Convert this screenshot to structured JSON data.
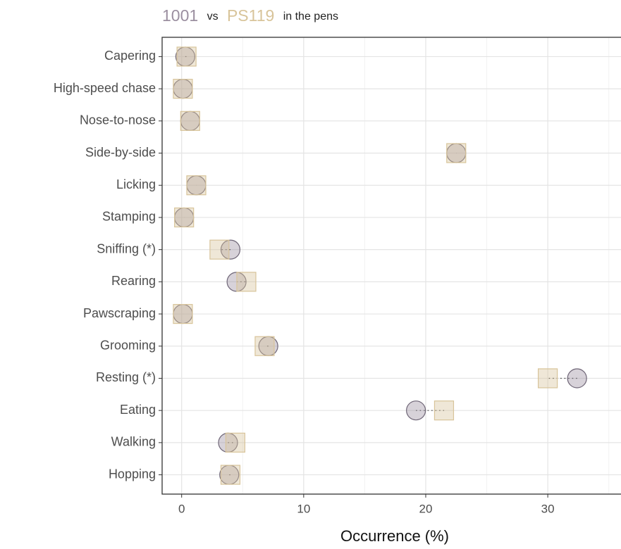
{
  "chart_data": {
    "type": "dumbbell",
    "title_vs": "vs",
    "title_tail": "in the pens",
    "xlabel": "Occurrence (%)",
    "categories": [
      "Capering",
      "High-speed chase",
      "Nose-to-nose",
      "Side-by-side",
      "Licking",
      "Stamping",
      "Sniffing (*)",
      "Rearing",
      "Pawscraping",
      "Grooming",
      "Resting (*)",
      "Eating",
      "Walking",
      "Hopping"
    ],
    "series": [
      {
        "name": "1001",
        "color": "#9b8fa0",
        "marker": "circle",
        "values": [
          0.3,
          0.1,
          0.7,
          22.5,
          1.2,
          0.2,
          4.0,
          4.5,
          0.1,
          7.1,
          32.4,
          19.2,
          3.8,
          3.9
        ]
      },
      {
        "name": "PS119",
        "color": "#d8c49a",
        "marker": "square",
        "values": [
          0.4,
          0.1,
          0.7,
          22.5,
          1.2,
          0.2,
          3.1,
          5.3,
          0.1,
          6.8,
          30.0,
          21.5,
          4.4,
          4.0
        ]
      }
    ],
    "xlim": [
      -1.6,
      36
    ],
    "xticks": [
      0,
      10,
      20,
      30
    ],
    "minor_xticks": [
      5,
      15,
      25,
      35
    ],
    "grid": true
  }
}
